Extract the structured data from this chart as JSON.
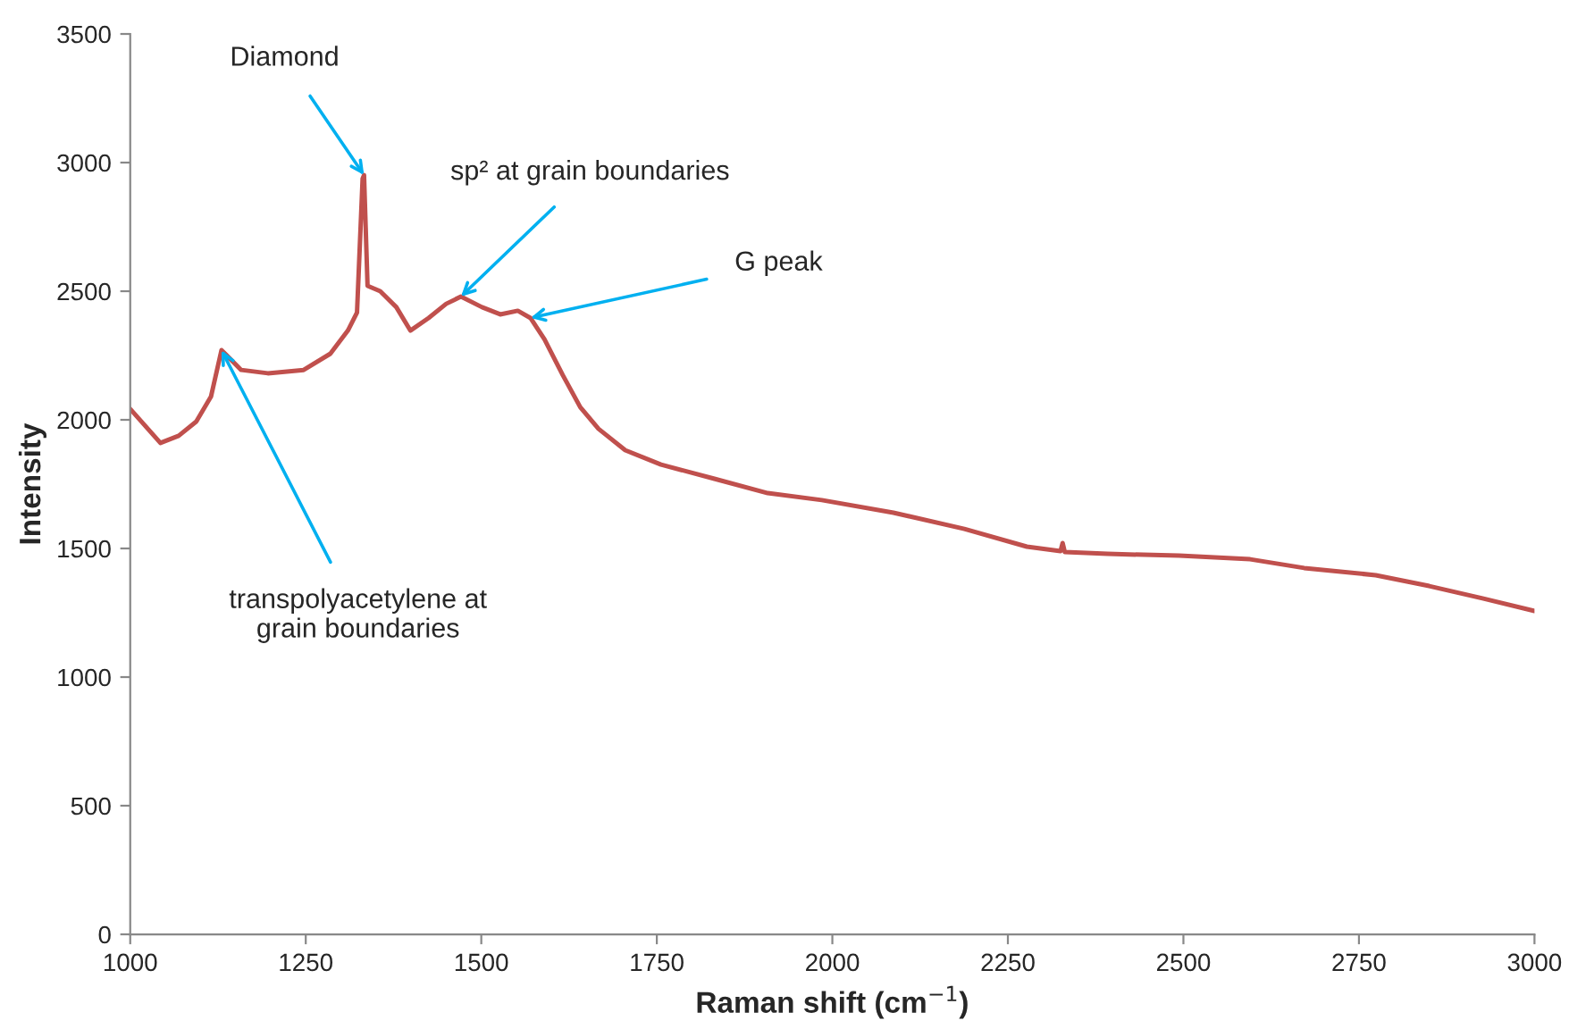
{
  "chart_data": {
    "type": "line",
    "xlabel": "Raman shift (cm$^{−1}$)",
    "ylabel": "Intensity",
    "xlim": [
      1000,
      3000
    ],
    "xticks": [
      1000,
      1250,
      1500,
      1750,
      2000,
      2250,
      2500,
      2750,
      3000
    ],
    "ylim": [
      0,
      3500
    ],
    "yticks": [
      0,
      500,
      1000,
      1500,
      2000,
      2500,
      3000,
      3500
    ],
    "grid": false,
    "series": [
      {
        "color": "#c0504d",
        "x": [
          1000,
          1043,
          1069,
          1094,
          1115,
          1130,
          1158,
          1196,
          1247,
          1285,
          1310,
          1323,
          1331,
          1333,
          1338,
          1356,
          1379,
          1399,
          1425,
          1450,
          1471,
          1501,
          1527,
          1552,
          1570,
          1590,
          1616,
          1641,
          1667,
          1705,
          1756,
          1832,
          1908,
          1985,
          2087,
          2188,
          2277,
          2325,
          2328,
          2331,
          2392,
          2494,
          2595,
          2672,
          2774,
          2850,
          2926,
          3000
        ],
        "values": [
          2042,
          1910,
          1938,
          1993,
          2090,
          2271,
          2194,
          2181,
          2194,
          2257,
          2347,
          2417,
          2938,
          2951,
          2521,
          2500,
          2438,
          2347,
          2396,
          2451,
          2479,
          2438,
          2410,
          2424,
          2396,
          2313,
          2174,
          2049,
          1965,
          1882,
          1826,
          1771,
          1715,
          1688,
          1639,
          1576,
          1507,
          1490,
          1521,
          1486,
          1479,
          1472,
          1458,
          1424,
          1396,
          1354,
          1306,
          1257
        ]
      }
    ],
    "annotations": [
      {
        "text": "Diamond",
        "x": 1333,
        "y": 2951
      },
      {
        "text": "sp² at grain boundaries",
        "x": 1471,
        "y": 2479
      },
      {
        "text": "G peak",
        "x": 1570,
        "y": 2396
      },
      {
        "text": "transpolyacetylene at\ngrain boundaries",
        "x": 1130,
        "y": 2271
      }
    ]
  }
}
